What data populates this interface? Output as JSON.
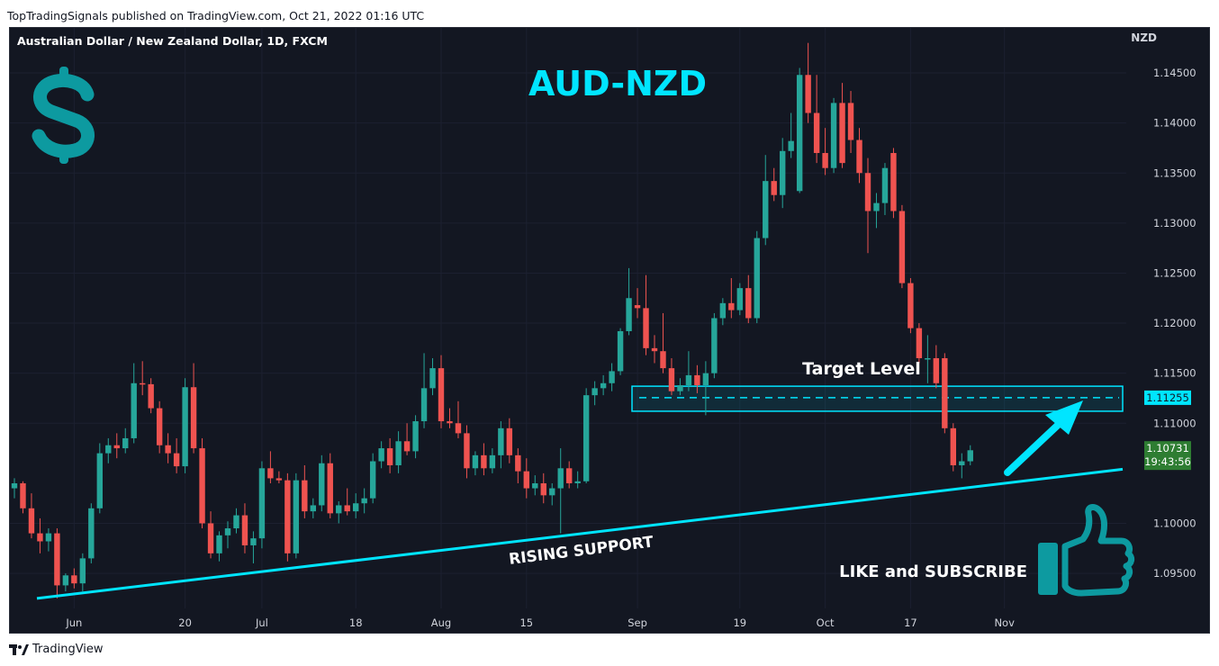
{
  "header": {
    "published": "TopTradingSignals published on TradingView.com, Oct 21, 2022 01:16 UTC"
  },
  "chart_title": "AUD-NZD",
  "symbol_label": "Australian Dollar / New Zealand Dollar, 1D, FXCM",
  "currency_label": "NZD",
  "footer_brand": "TradingView",
  "colors": {
    "up": "#26a69a",
    "down": "#ef5350",
    "accent": "#00e5ff",
    "background": "#131722",
    "dollar": "#0d9aa0"
  },
  "annotations": {
    "target_label": "Target Level",
    "support_label": "RISING SUPPORT",
    "cta_label": "LIKE and SUBSCRIBE",
    "target_price_label": "1.11255",
    "last_price_label": "1.10731",
    "countdown_label": "19:43:56"
  },
  "chart_data": {
    "type": "candlestick",
    "title": "AUD-NZD",
    "x_tick_labels": [
      "Jun",
      "20",
      "Jul",
      "18",
      "Aug",
      "15",
      "Sep",
      "19",
      "Oct",
      "17",
      "Nov"
    ],
    "y_tick_labels": [
      "1.14500",
      "1.14000",
      "1.13500",
      "1.13000",
      "1.12500",
      "1.12000",
      "1.11500",
      "1.11000",
      "1.10000",
      "1.09500"
    ],
    "ylim": [
      1.0915,
      1.1495
    ],
    "target_level": 1.11255,
    "last_price": 1.10731,
    "target_zone": [
      1.1112,
      1.1137
    ],
    "support_line": {
      "from": [
        "2022-05-26",
        1.0925
      ],
      "to": [
        "2022-10-28",
        1.1054
      ]
    },
    "candles": [
      {
        "date": "2022-05-23",
        "o": 1.1035,
        "h": 1.1045,
        "l": 1.1025,
        "c": 1.104
      },
      {
        "date": "2022-05-24",
        "o": 1.104,
        "h": 1.1042,
        "l": 1.101,
        "c": 1.1015
      },
      {
        "date": "2022-05-25",
        "o": 1.1015,
        "h": 1.103,
        "l": 1.0985,
        "c": 1.099
      },
      {
        "date": "2022-05-26",
        "o": 1.099,
        "h": 1.1005,
        "l": 1.097,
        "c": 1.0982
      },
      {
        "date": "2022-05-27",
        "o": 1.0982,
        "h": 1.0995,
        "l": 1.0972,
        "c": 1.099
      },
      {
        "date": "2022-05-30",
        "o": 1.099,
        "h": 1.0995,
        "l": 1.0925,
        "c": 1.0938
      },
      {
        "date": "2022-05-31",
        "o": 1.0938,
        "h": 1.095,
        "l": 1.0932,
        "c": 1.0948
      },
      {
        "date": "2022-06-01",
        "o": 1.0948,
        "h": 1.0955,
        "l": 1.0935,
        "c": 1.094
      },
      {
        "date": "2022-06-02",
        "o": 1.094,
        "h": 1.097,
        "l": 1.0932,
        "c": 1.0965
      },
      {
        "date": "2022-06-03",
        "o": 1.0965,
        "h": 1.102,
        "l": 1.096,
        "c": 1.1015
      },
      {
        "date": "2022-06-06",
        "o": 1.1015,
        "h": 1.108,
        "l": 1.101,
        "c": 1.107
      },
      {
        "date": "2022-06-07",
        "o": 1.107,
        "h": 1.1085,
        "l": 1.106,
        "c": 1.1078
      },
      {
        "date": "2022-06-08",
        "o": 1.1078,
        "h": 1.109,
        "l": 1.1065,
        "c": 1.1075
      },
      {
        "date": "2022-06-09",
        "o": 1.1075,
        "h": 1.1095,
        "l": 1.107,
        "c": 1.1085
      },
      {
        "date": "2022-06-10",
        "o": 1.1085,
        "h": 1.116,
        "l": 1.108,
        "c": 1.114
      },
      {
        "date": "2022-06-13",
        "o": 1.114,
        "h": 1.1162,
        "l": 1.1128,
        "c": 1.1139
      },
      {
        "date": "2022-06-14",
        "o": 1.1139,
        "h": 1.1145,
        "l": 1.111,
        "c": 1.1115
      },
      {
        "date": "2022-06-15",
        "o": 1.1115,
        "h": 1.1122,
        "l": 1.107,
        "c": 1.1078
      },
      {
        "date": "2022-06-16",
        "o": 1.1078,
        "h": 1.109,
        "l": 1.106,
        "c": 1.107
      },
      {
        "date": "2022-06-17",
        "o": 1.107,
        "h": 1.1085,
        "l": 1.105,
        "c": 1.1057
      },
      {
        "date": "2022-06-20",
        "o": 1.1057,
        "h": 1.1145,
        "l": 1.105,
        "c": 1.1136
      },
      {
        "date": "2022-06-21",
        "o": 1.1136,
        "h": 1.116,
        "l": 1.107,
        "c": 1.1075
      },
      {
        "date": "2022-06-22",
        "o": 1.1075,
        "h": 1.1085,
        "l": 1.0995,
        "c": 1.1
      },
      {
        "date": "2022-06-23",
        "o": 1.1,
        "h": 1.1012,
        "l": 1.0965,
        "c": 1.097
      },
      {
        "date": "2022-06-24",
        "o": 1.097,
        "h": 1.0992,
        "l": 1.0962,
        "c": 1.0988
      },
      {
        "date": "2022-06-27",
        "o": 1.0988,
        "h": 1.1002,
        "l": 1.0975,
        "c": 1.0995
      },
      {
        "date": "2022-06-28",
        "o": 1.0995,
        "h": 1.1015,
        "l": 1.099,
        "c": 1.1008
      },
      {
        "date": "2022-06-29",
        "o": 1.1008,
        "h": 1.102,
        "l": 1.097,
        "c": 1.0978
      },
      {
        "date": "2022-06-30",
        "o": 1.0978,
        "h": 1.0992,
        "l": 1.096,
        "c": 1.0985
      },
      {
        "date": "2022-07-01",
        "o": 1.0985,
        "h": 1.1062,
        "l": 1.0975,
        "c": 1.1055
      },
      {
        "date": "2022-07-04",
        "o": 1.1055,
        "h": 1.1072,
        "l": 1.104,
        "c": 1.1045
      },
      {
        "date": "2022-07-05",
        "o": 1.1045,
        "h": 1.1052,
        "l": 1.104,
        "c": 1.1043
      },
      {
        "date": "2022-07-06",
        "o": 1.1043,
        "h": 1.105,
        "l": 1.0962,
        "c": 1.097
      },
      {
        "date": "2022-07-07",
        "o": 1.097,
        "h": 1.105,
        "l": 1.0965,
        "c": 1.1043
      },
      {
        "date": "2022-07-08",
        "o": 1.1043,
        "h": 1.1058,
        "l": 1.1005,
        "c": 1.1012
      },
      {
        "date": "2022-07-11",
        "o": 1.1012,
        "h": 1.1025,
        "l": 1.1005,
        "c": 1.1018
      },
      {
        "date": "2022-07-12",
        "o": 1.1018,
        "h": 1.1068,
        "l": 1.1012,
        "c": 1.106
      },
      {
        "date": "2022-07-13",
        "o": 1.106,
        "h": 1.107,
        "l": 1.1005,
        "c": 1.101
      },
      {
        "date": "2022-07-14",
        "o": 1.101,
        "h": 1.1022,
        "l": 1.1,
        "c": 1.1018
      },
      {
        "date": "2022-07-15",
        "o": 1.1018,
        "h": 1.1035,
        "l": 1.1008,
        "c": 1.1012
      },
      {
        "date": "2022-07-18",
        "o": 1.1012,
        "h": 1.103,
        "l": 1.1005,
        "c": 1.102
      },
      {
        "date": "2022-07-19",
        "o": 1.102,
        "h": 1.1035,
        "l": 1.101,
        "c": 1.1025
      },
      {
        "date": "2022-07-20",
        "o": 1.1025,
        "h": 1.107,
        "l": 1.102,
        "c": 1.1062
      },
      {
        "date": "2022-07-21",
        "o": 1.1062,
        "h": 1.1082,
        "l": 1.1055,
        "c": 1.1075
      },
      {
        "date": "2022-07-22",
        "o": 1.1075,
        "h": 1.1085,
        "l": 1.105,
        "c": 1.1058
      },
      {
        "date": "2022-07-25",
        "o": 1.1058,
        "h": 1.1092,
        "l": 1.105,
        "c": 1.1082
      },
      {
        "date": "2022-07-26",
        "o": 1.1082,
        "h": 1.11,
        "l": 1.1068,
        "c": 1.1072
      },
      {
        "date": "2022-07-27",
        "o": 1.1072,
        "h": 1.1108,
        "l": 1.1065,
        "c": 1.1102
      },
      {
        "date": "2022-07-28",
        "o": 1.1102,
        "h": 1.117,
        "l": 1.1095,
        "c": 1.1135
      },
      {
        "date": "2022-07-29",
        "o": 1.1135,
        "h": 1.1165,
        "l": 1.1128,
        "c": 1.1155
      },
      {
        "date": "2022-08-01",
        "o": 1.1155,
        "h": 1.1168,
        "l": 1.1095,
        "c": 1.1102
      },
      {
        "date": "2022-08-02",
        "o": 1.1102,
        "h": 1.1115,
        "l": 1.1095,
        "c": 1.11
      },
      {
        "date": "2022-08-03",
        "o": 1.11,
        "h": 1.1122,
        "l": 1.1085,
        "c": 1.109
      },
      {
        "date": "2022-08-04",
        "o": 1.109,
        "h": 1.1098,
        "l": 1.1045,
        "c": 1.1055
      },
      {
        "date": "2022-08-05",
        "o": 1.1055,
        "h": 1.1072,
        "l": 1.1048,
        "c": 1.1068
      },
      {
        "date": "2022-08-08",
        "o": 1.1068,
        "h": 1.108,
        "l": 1.1048,
        "c": 1.1055
      },
      {
        "date": "2022-08-09",
        "o": 1.1055,
        "h": 1.1075,
        "l": 1.105,
        "c": 1.1068
      },
      {
        "date": "2022-08-10",
        "o": 1.1068,
        "h": 1.1102,
        "l": 1.1055,
        "c": 1.1095
      },
      {
        "date": "2022-08-11",
        "o": 1.1095,
        "h": 1.1105,
        "l": 1.106,
        "c": 1.1068
      },
      {
        "date": "2022-08-12",
        "o": 1.1068,
        "h": 1.1075,
        "l": 1.104,
        "c": 1.1052
      },
      {
        "date": "2022-08-15",
        "o": 1.1052,
        "h": 1.1065,
        "l": 1.1025,
        "c": 1.1035
      },
      {
        "date": "2022-08-16",
        "o": 1.1035,
        "h": 1.1048,
        "l": 1.1028,
        "c": 1.104
      },
      {
        "date": "2022-08-17",
        "o": 1.104,
        "h": 1.105,
        "l": 1.102,
        "c": 1.1028
      },
      {
        "date": "2022-08-18",
        "o": 1.1028,
        "h": 1.104,
        "l": 1.1018,
        "c": 1.1035
      },
      {
        "date": "2022-08-19",
        "o": 1.1035,
        "h": 1.1075,
        "l": 1.099,
        "c": 1.1055
      },
      {
        "date": "2022-08-22",
        "o": 1.1055,
        "h": 1.1062,
        "l": 1.1035,
        "c": 1.104
      },
      {
        "date": "2022-08-23",
        "o": 1.104,
        "h": 1.1052,
        "l": 1.1035,
        "c": 1.1042
      },
      {
        "date": "2022-08-24",
        "o": 1.1042,
        "h": 1.1135,
        "l": 1.104,
        "c": 1.1128
      },
      {
        "date": "2022-08-25",
        "o": 1.1128,
        "h": 1.1142,
        "l": 1.1118,
        "c": 1.1135
      },
      {
        "date": "2022-08-26",
        "o": 1.1135,
        "h": 1.1148,
        "l": 1.1128,
        "c": 1.114
      },
      {
        "date": "2022-08-29",
        "o": 1.114,
        "h": 1.116,
        "l": 1.1132,
        "c": 1.1152
      },
      {
        "date": "2022-08-30",
        "o": 1.1152,
        "h": 1.1195,
        "l": 1.1148,
        "c": 1.1192
      },
      {
        "date": "2022-08-31",
        "o": 1.1192,
        "h": 1.1255,
        "l": 1.1188,
        "c": 1.1225
      },
      {
        "date": "2022-09-01",
        "o": 1.1218,
        "h": 1.1235,
        "l": 1.1205,
        "c": 1.1215
      },
      {
        "date": "2022-09-02",
        "o": 1.1215,
        "h": 1.1248,
        "l": 1.1168,
        "c": 1.1175
      },
      {
        "date": "2022-09-05",
        "o": 1.1175,
        "h": 1.1188,
        "l": 1.116,
        "c": 1.1172
      },
      {
        "date": "2022-09-06",
        "o": 1.1172,
        "h": 1.121,
        "l": 1.115,
        "c": 1.1155
      },
      {
        "date": "2022-09-07",
        "o": 1.1155,
        "h": 1.1165,
        "l": 1.1128,
        "c": 1.1132
      },
      {
        "date": "2022-09-08",
        "o": 1.1132,
        "h": 1.1145,
        "l": 1.1128,
        "c": 1.1138
      },
      {
        "date": "2022-09-09",
        "o": 1.1138,
        "h": 1.1172,
        "l": 1.1132,
        "c": 1.1148
      },
      {
        "date": "2022-09-12",
        "o": 1.1148,
        "h": 1.1158,
        "l": 1.113,
        "c": 1.1138
      },
      {
        "date": "2022-09-13",
        "o": 1.1138,
        "h": 1.1162,
        "l": 1.1108,
        "c": 1.115
      },
      {
        "date": "2022-09-14",
        "o": 1.115,
        "h": 1.121,
        "l": 1.1145,
        "c": 1.1205
      },
      {
        "date": "2022-09-15",
        "o": 1.1205,
        "h": 1.1225,
        "l": 1.1198,
        "c": 1.122
      },
      {
        "date": "2022-09-16",
        "o": 1.122,
        "h": 1.1245,
        "l": 1.1205,
        "c": 1.1213
      },
      {
        "date": "2022-09-19",
        "o": 1.1213,
        "h": 1.124,
        "l": 1.1208,
        "c": 1.1235
      },
      {
        "date": "2022-09-20",
        "o": 1.1235,
        "h": 1.1248,
        "l": 1.12,
        "c": 1.1205
      },
      {
        "date": "2022-09-21",
        "o": 1.1205,
        "h": 1.1292,
        "l": 1.12,
        "c": 1.1285
      },
      {
        "date": "2022-09-22",
        "o": 1.1285,
        "h": 1.1368,
        "l": 1.1278,
        "c": 1.1342
      },
      {
        "date": "2022-09-23",
        "o": 1.1342,
        "h": 1.1355,
        "l": 1.1322,
        "c": 1.1328
      },
      {
        "date": "2022-09-26",
        "o": 1.1328,
        "h": 1.1385,
        "l": 1.1315,
        "c": 1.1372
      },
      {
        "date": "2022-09-27",
        "o": 1.1372,
        "h": 1.141,
        "l": 1.1365,
        "c": 1.1382
      },
      {
        "date": "2022-09-28",
        "o": 1.1332,
        "h": 1.1455,
        "l": 1.133,
        "c": 1.1448
      },
      {
        "date": "2022-09-29",
        "o": 1.1448,
        "h": 1.148,
        "l": 1.14,
        "c": 1.141
      },
      {
        "date": "2022-09-30",
        "o": 1.141,
        "h": 1.1448,
        "l": 1.136,
        "c": 1.137
      },
      {
        "date": "2022-10-03",
        "o": 1.137,
        "h": 1.1395,
        "l": 1.1348,
        "c": 1.1355
      },
      {
        "date": "2022-10-04",
        "o": 1.1355,
        "h": 1.1425,
        "l": 1.135,
        "c": 1.142
      },
      {
        "date": "2022-10-05",
        "o": 1.142,
        "h": 1.144,
        "l": 1.1355,
        "c": 1.136
      },
      {
        "date": "2022-10-06",
        "o": 1.142,
        "h": 1.1432,
        "l": 1.137,
        "c": 1.1383
      },
      {
        "date": "2022-10-07",
        "o": 1.1383,
        "h": 1.1395,
        "l": 1.134,
        "c": 1.135
      },
      {
        "date": "2022-10-10",
        "o": 1.135,
        "h": 1.1365,
        "l": 1.127,
        "c": 1.1312
      },
      {
        "date": "2022-10-11",
        "o": 1.1312,
        "h": 1.133,
        "l": 1.1295,
        "c": 1.132
      },
      {
        "date": "2022-10-12",
        "o": 1.132,
        "h": 1.136,
        "l": 1.1308,
        "c": 1.1355
      },
      {
        "date": "2022-10-13",
        "o": 1.137,
        "h": 1.1375,
        "l": 1.1305,
        "c": 1.1312
      },
      {
        "date": "2022-10-14",
        "o": 1.1312,
        "h": 1.1318,
        "l": 1.1235,
        "c": 1.124
      },
      {
        "date": "2022-10-17",
        "o": 1.124,
        "h": 1.1245,
        "l": 1.119,
        "c": 1.1195
      },
      {
        "date": "2022-10-18",
        "o": 1.1195,
        "h": 1.12,
        "l": 1.116,
        "c": 1.1165
      },
      {
        "date": "2022-10-19",
        "o": 1.1165,
        "h": 1.1188,
        "l": 1.114,
        "c": 1.1165
      },
      {
        "date": "2022-10-20",
        "o": 1.1165,
        "h": 1.1178,
        "l": 1.1135,
        "c": 1.114
      },
      {
        "date": "2022-10-21",
        "o": 1.1165,
        "h": 1.117,
        "l": 1.109,
        "c": 1.1095
      },
      {
        "date": "2022-10-24",
        "o": 1.1095,
        "h": 1.11,
        "l": 1.1052,
        "c": 1.1058
      },
      {
        "date": "2022-10-25",
        "o": 1.1058,
        "h": 1.107,
        "l": 1.1045,
        "c": 1.1062
      },
      {
        "date": "2022-10-26",
        "o": 1.1062,
        "h": 1.1078,
        "l": 1.1058,
        "c": 1.1073
      }
    ]
  }
}
